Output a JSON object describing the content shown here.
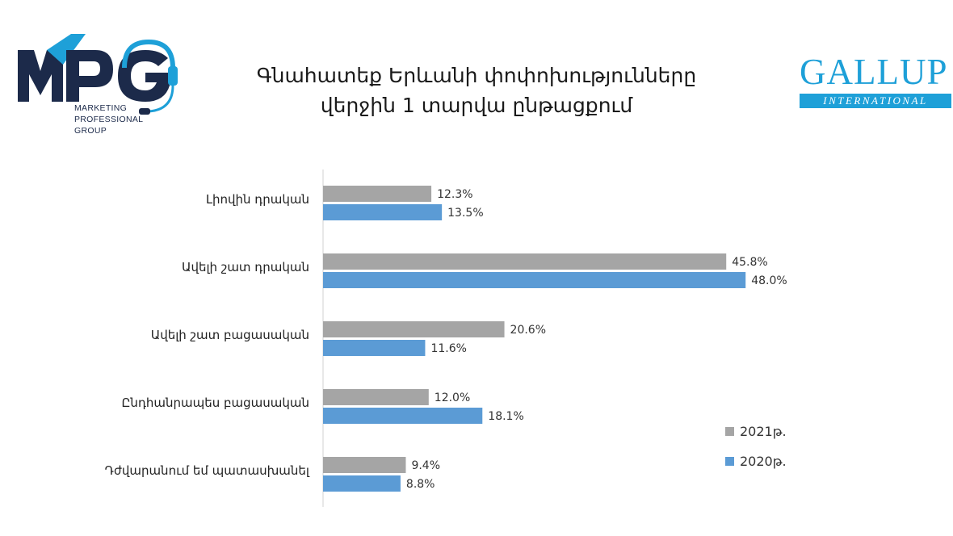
{
  "logos": {
    "mpg": {
      "mark": "MPG",
      "lines": [
        "MARKETING",
        "PROFESSIONAL",
        "GROUP"
      ]
    },
    "gallup": {
      "name": "GALLUP",
      "sub": "INTERNATIONAL"
    }
  },
  "colors": {
    "series_2021": "#a5a5a5",
    "series_2020": "#5b9bd5",
    "mpg_dark": "#1c2a4a",
    "mpg_cyan": "#1ea0d8",
    "gallup_blue": "#1ea0d8"
  },
  "chart_data": {
    "type": "bar",
    "orientation": "horizontal",
    "title": "Գնահատեք Երևանի փոփոխությունները վերջին 1 տարվա ընթացքում",
    "title_lines": [
      "Գնահատեք Երևանի փոփոխությունները",
      "վերջին 1 տարվա ընթացքում"
    ],
    "categories": [
      "Լիովին դրական",
      "Ավելի շատ դրական",
      "Ավելի շատ բացասական",
      "Ընդհանրապես բացասական",
      "Դժվարանում եմ պատասխանել"
    ],
    "series": [
      {
        "name": "2021թ.",
        "values": [
          12.3,
          45.8,
          20.6,
          12.0,
          9.4
        ],
        "labels": [
          "12.3%",
          "45.8%",
          "20.6%",
          "12.0%",
          "9.4%"
        ],
        "color": "#a5a5a5"
      },
      {
        "name": "2020թ.",
        "values": [
          13.5,
          48.0,
          11.6,
          18.1,
          8.8
        ],
        "labels": [
          "13.5%",
          "48.0%",
          "11.6%",
          "18.1%",
          "8.8%"
        ],
        "color": "#5b9bd5"
      }
    ],
    "unit": "%",
    "xlim": [
      0,
      55
    ],
    "grid": false,
    "legend_position": "right"
  }
}
